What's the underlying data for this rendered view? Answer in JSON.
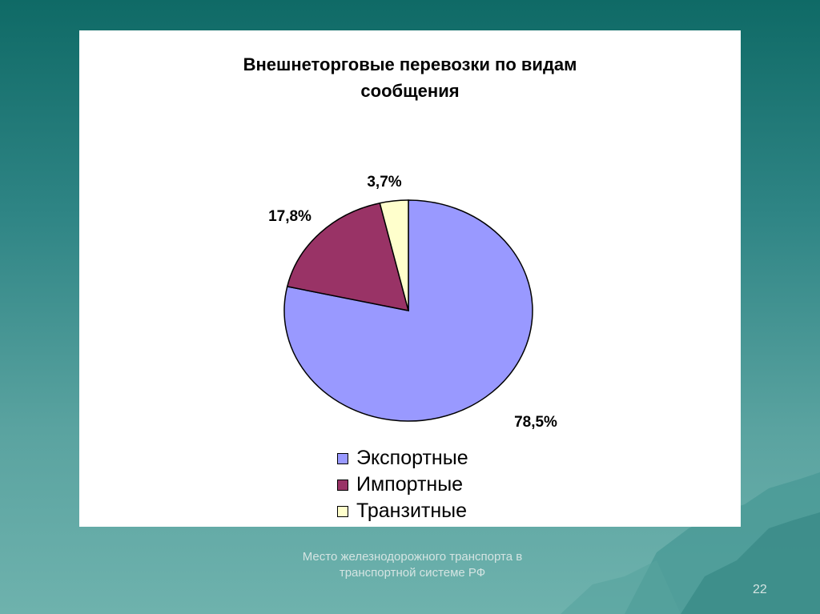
{
  "colors": {
    "export": "#9999ff",
    "import": "#993366",
    "transit": "#ffffcc"
  },
  "chart_data": {
    "type": "pie",
    "title": "Внешнеторговые перевозки по видам сообщения",
    "slices": [
      {
        "name": "Экспортные",
        "value": 78.5,
        "label": "78,5%",
        "color": "#9999ff"
      },
      {
        "name": "Импортные",
        "value": 17.8,
        "label": "17,8%",
        "color": "#993366"
      },
      {
        "name": "Транзитные",
        "value": 3.7,
        "label": "3,7%",
        "color": "#ffffcc"
      }
    ],
    "legend_position": "bottom"
  },
  "footer": {
    "caption": "Место железнодорожного транспорта в транспортной системе РФ",
    "page_number": "22"
  }
}
